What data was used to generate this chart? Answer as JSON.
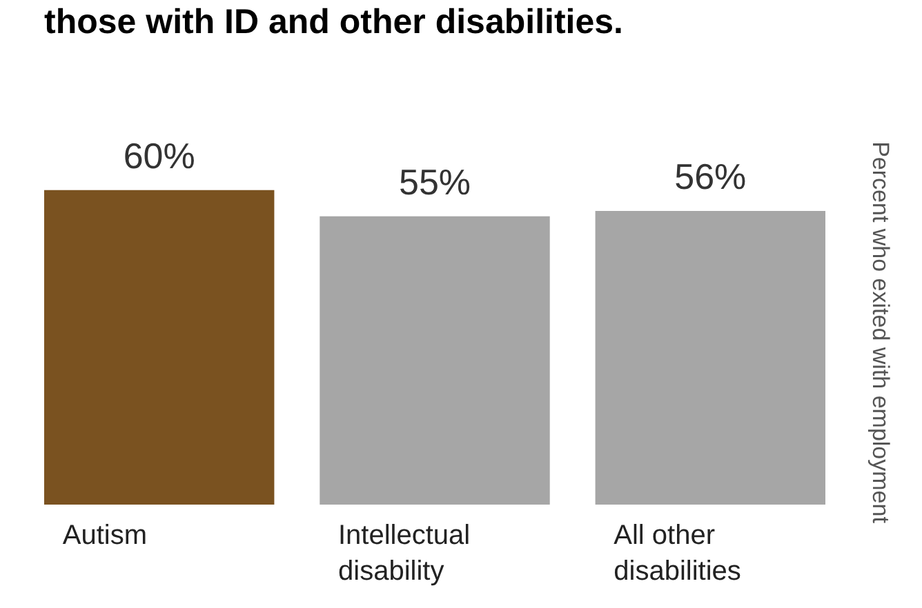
{
  "chart_data": {
    "type": "bar",
    "title": "those with ID and other disabilities.",
    "ylabel": "Percent who exited with employment",
    "categories": [
      "Autism",
      "Intellectual disability",
      "All other disabilities"
    ],
    "values": [
      60,
      55,
      56
    ],
    "colors": [
      "#7a5220",
      "#a6a6a6",
      "#a6a6a6"
    ],
    "value_labels": [
      "60%",
      "55%",
      "56%"
    ]
  }
}
